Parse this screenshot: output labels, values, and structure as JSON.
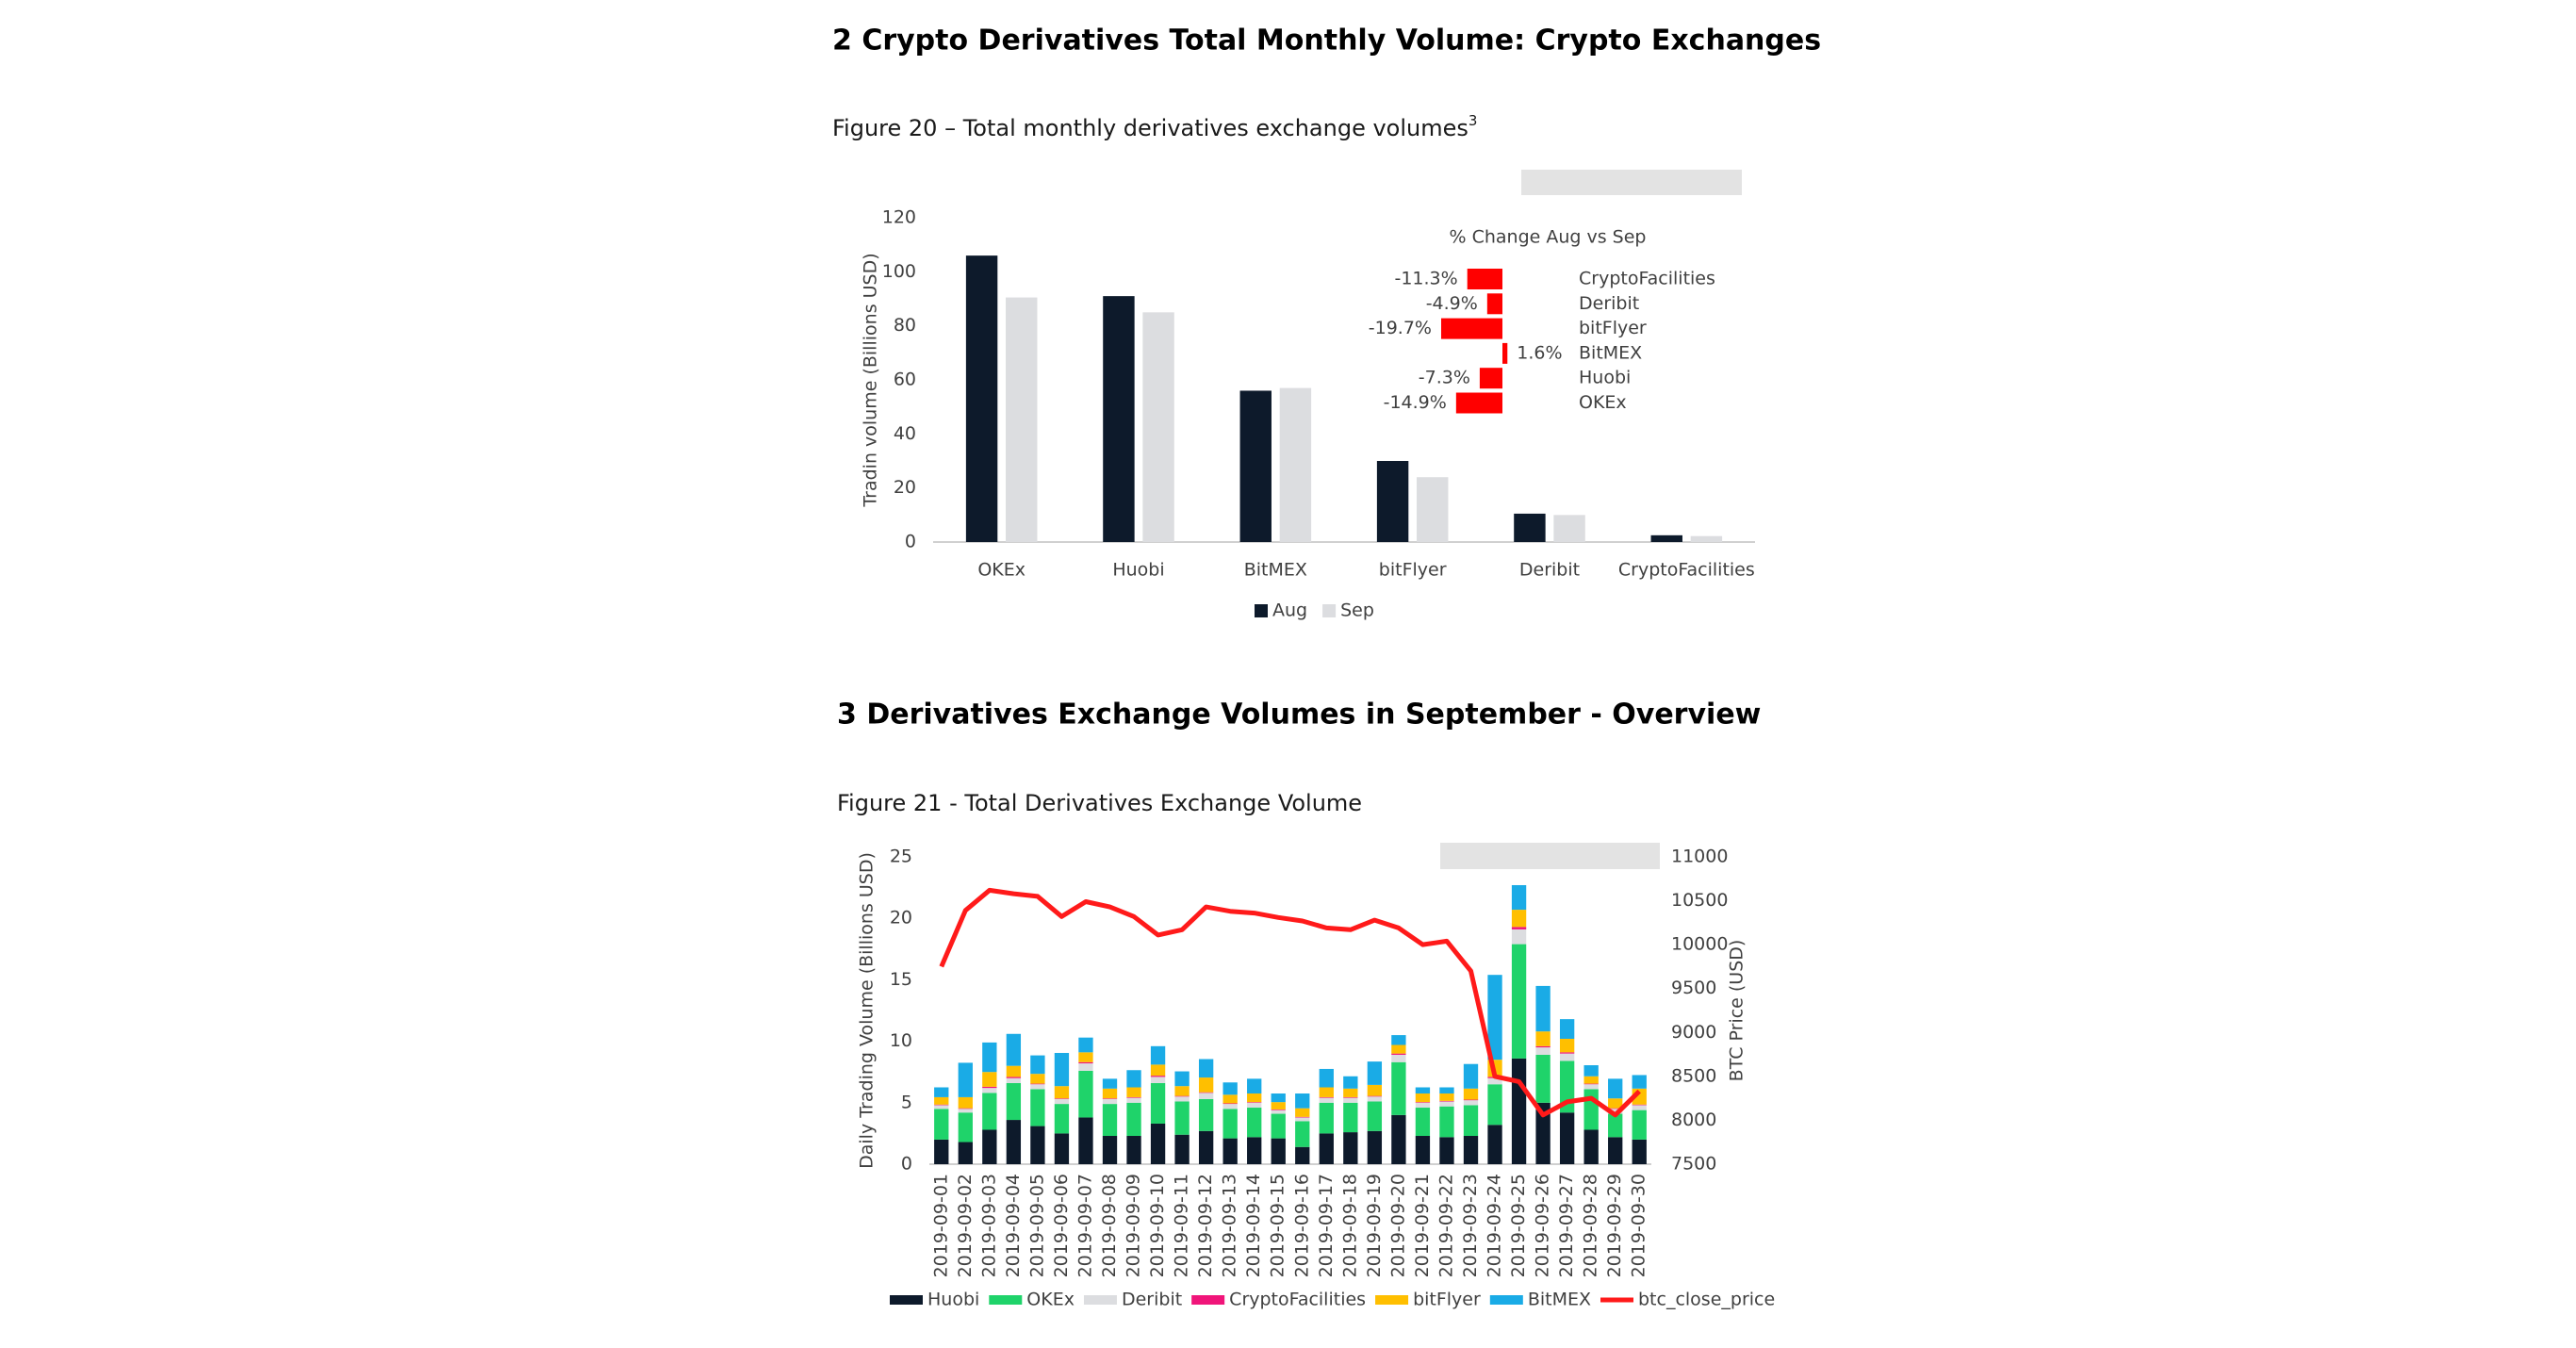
{
  "sections": [
    {
      "heading": "2  Crypto Derivatives Total Monthly Volume: Crypto Exchanges",
      "caption": "Figure 20 – Total monthly derivatives exchange volumes",
      "caption_sup": "3"
    },
    {
      "heading": "3  Derivatives Exchange Volumes in September - Overview",
      "caption": "Figure 21 - Total Derivatives Exchange Volume"
    }
  ],
  "chart_data": [
    {
      "type": "bar",
      "ylabel": "Tradin volume (Billions USD)",
      "categories": [
        "OKEx",
        "Huobi",
        "BitMEX",
        "bitFlyer",
        "Deribit",
        "CryptoFacilities"
      ],
      "series": [
        {
          "name": "Aug",
          "color": "#0d1a2b",
          "values": [
            106,
            91,
            56,
            30,
            10.5,
            2.5
          ]
        },
        {
          "name": "Sep",
          "color": "#dcdde0",
          "values": [
            90.5,
            85,
            57,
            24,
            10,
            2.2
          ]
        }
      ],
      "ylim": [
        0,
        120
      ],
      "yticks": [
        0,
        20,
        40,
        60,
        80,
        100,
        120
      ],
      "grid": false
    },
    {
      "type": "bar",
      "orientation": "horizontal",
      "title": "% Change Aug vs Sep",
      "categories": [
        "CryptoFacilities",
        "Deribit",
        "bitFlyer",
        "BitMEX",
        "Huobi",
        "OKEx"
      ],
      "values": [
        -11.3,
        -4.9,
        -19.7,
        1.6,
        -7.3,
        -14.9
      ],
      "value_labels": [
        "-11.3%",
        "-4.9%",
        "-19.7%",
        "1.6%",
        "-7.3%",
        "-14.9%"
      ],
      "color": "#ff0000"
    },
    {
      "type": "bar",
      "stacked": true,
      "ylabel": "Daily Trading Volume (Billions USD)",
      "y2label": "BTC Price (USD)",
      "x": [
        "2019-09-01",
        "2019-09-02",
        "2019-09-03",
        "2019-09-04",
        "2019-09-05",
        "2019-09-06",
        "2019-09-07",
        "2019-09-08",
        "2019-09-09",
        "2019-09-10",
        "2019-09-11",
        "2019-09-12",
        "2019-09-13",
        "2019-09-14",
        "2019-09-15",
        "2019-09-16",
        "2019-09-17",
        "2019-09-18",
        "2019-09-19",
        "2019-09-20",
        "2019-09-21",
        "2019-09-22",
        "2019-09-23",
        "2019-09-24",
        "2019-09-25",
        "2019-09-26",
        "2019-09-27",
        "2019-09-28",
        "2019-09-29",
        "2019-09-30"
      ],
      "series": [
        {
          "name": "Huobi",
          "color": "#0d1a2b",
          "values": [
            2.0,
            1.8,
            2.8,
            3.6,
            3.1,
            2.5,
            3.8,
            2.3,
            2.3,
            3.3,
            2.4,
            2.7,
            2.1,
            2.2,
            2.1,
            1.4,
            2.5,
            2.6,
            2.7,
            4.0,
            2.3,
            2.2,
            2.3,
            3.2,
            8.6,
            5.0,
            4.2,
            2.8,
            2.2,
            2.0
          ]
        },
        {
          "name": "OKEx",
          "color": "#1fd36a",
          "values": [
            2.5,
            2.4,
            3.0,
            3.0,
            3.0,
            2.4,
            3.8,
            2.6,
            2.7,
            3.3,
            2.7,
            2.6,
            2.4,
            2.4,
            2.0,
            2.1,
            2.5,
            2.4,
            2.4,
            4.3,
            2.3,
            2.5,
            2.5,
            3.3,
            9.3,
            3.9,
            4.2,
            3.3,
            1.9,
            2.4
          ]
        },
        {
          "name": "Deribit",
          "color": "#dcdde0",
          "values": [
            0.3,
            0.3,
            0.4,
            0.4,
            0.4,
            0.4,
            0.6,
            0.4,
            0.4,
            0.5,
            0.4,
            0.5,
            0.4,
            0.4,
            0.3,
            0.3,
            0.4,
            0.4,
            0.4,
            0.6,
            0.4,
            0.4,
            0.4,
            0.5,
            1.2,
            0.6,
            0.6,
            0.4,
            0.4,
            0.4
          ]
        },
        {
          "name": "CryptoFacilities",
          "color": "#f0157a",
          "values": [
            0.05,
            0.05,
            0.1,
            0.1,
            0.05,
            0.05,
            0.1,
            0.05,
            0.05,
            0.1,
            0.05,
            0.05,
            0.05,
            0.05,
            0.05,
            0.05,
            0.05,
            0.05,
            0.05,
            0.1,
            0.05,
            0.05,
            0.05,
            0.1,
            0.2,
            0.1,
            0.1,
            0.05,
            0.05,
            0.05
          ]
        },
        {
          "name": "bitFlyer",
          "color": "#ffbf00",
          "values": [
            0.6,
            0.9,
            1.2,
            0.9,
            0.8,
            1.0,
            0.8,
            0.8,
            0.8,
            0.9,
            0.8,
            1.2,
            0.7,
            0.7,
            0.6,
            0.7,
            0.8,
            0.7,
            0.9,
            0.7,
            0.7,
            0.6,
            0.9,
            1.4,
            1.4,
            1.2,
            1.1,
            0.6,
            0.8,
            1.3
          ]
        },
        {
          "name": "BitMEX",
          "color": "#1aabe6",
          "values": [
            0.8,
            2.8,
            2.4,
            2.6,
            1.5,
            2.7,
            1.2,
            0.8,
            1.4,
            1.5,
            1.2,
            1.5,
            1.0,
            1.2,
            0.7,
            1.2,
            1.5,
            1.0,
            1.9,
            0.8,
            0.5,
            0.5,
            2.0,
            6.9,
            2.0,
            3.7,
            1.6,
            0.9,
            1.6,
            1.1
          ]
        },
        {
          "name": "btc_close_price",
          "type": "line",
          "axis": "y2",
          "color": "#ff1a1a",
          "values": [
            9750,
            10390,
            10620,
            10580,
            10550,
            10320,
            10490,
            10430,
            10320,
            10110,
            10170,
            10430,
            10380,
            10360,
            10310,
            10270,
            10190,
            10170,
            10280,
            10190,
            10000,
            10040,
            9700,
            8500,
            8440,
            8060,
            8210,
            8250,
            8060,
            8330
          ]
        }
      ],
      "ylim": [
        0,
        25
      ],
      "yticks": [
        0,
        5,
        10,
        15,
        20,
        25
      ],
      "y2lim": [
        7500,
        11000
      ],
      "y2ticks": [
        7500,
        8000,
        8500,
        9000,
        9500,
        10000,
        10500,
        11000
      ],
      "grid": false
    }
  ]
}
